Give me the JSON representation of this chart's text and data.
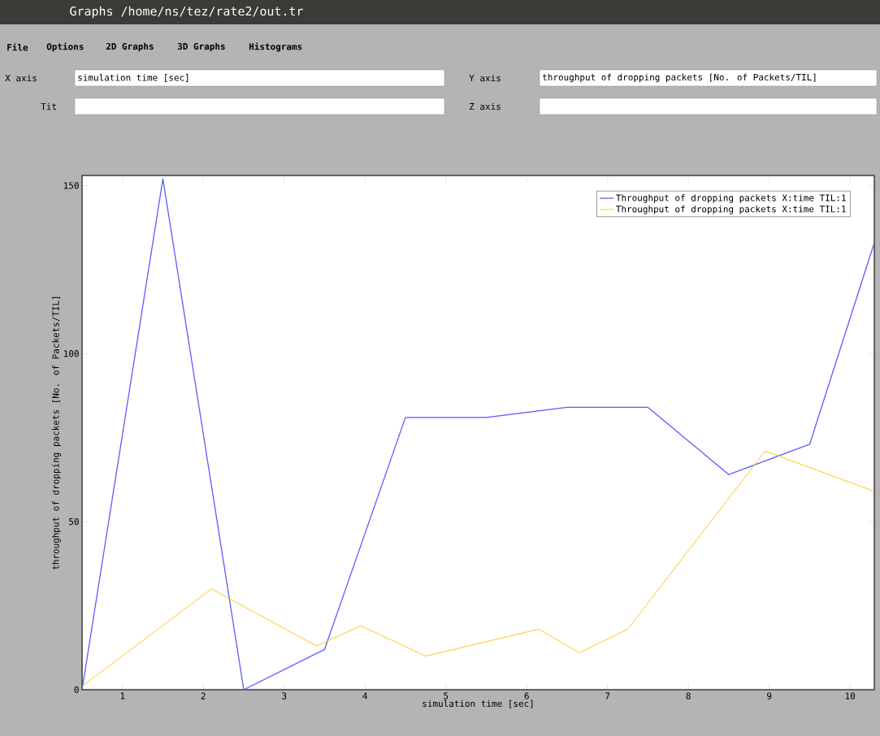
{
  "chart_data": {
    "type": "line",
    "title": "Graphs /home/ns/tez/rate2/out.tr",
    "xlabel": "simulation time [sec]",
    "ylabel": "throughput of dropping packets [No. of Packets/TIL]",
    "annotations": [
      "File",
      "Options",
      "2D Graphs",
      "3D Graphs",
      "Histograms",
      "X axis",
      "simulation time [sec]",
      "Y axis",
      "throughput of dropping packets [No. of Packets/TIL]",
      "Tit",
      "Z axis"
    ],
    "xlim": [
      0.5,
      10.3
    ],
    "ylim": [
      0,
      153
    ],
    "xticks": [
      1,
      2,
      3,
      4,
      5,
      6,
      7,
      8,
      9,
      10
    ],
    "yticks": [
      0,
      50,
      100,
      150
    ],
    "grid": false,
    "legend": "top right",
    "marker": "none",
    "line_style": "solid",
    "series": [
      {
        "name": "Throughput of dropping packets X:time TIL:1",
        "color": "#5b5bff",
        "x": [
          0.5,
          1.5,
          2.5,
          3.5,
          4.5,
          5.5,
          6.5,
          7.5,
          8.5,
          9.5,
          10.3
        ],
        "values": [
          0,
          152,
          0,
          12,
          81,
          81,
          84,
          84,
          64,
          73,
          133
        ]
      },
      {
        "name": "Throughput of dropping packets X:time TIL:1",
        "color": "#ffc000",
        "x": [
          0.5,
          2.1,
          3.4,
          3.95,
          4.75,
          6.15,
          6.65,
          7.25,
          8.95,
          10.3
        ],
        "values": [
          1,
          30,
          13,
          19,
          10,
          18,
          11,
          18,
          71,
          59
        ]
      }
    ]
  }
}
